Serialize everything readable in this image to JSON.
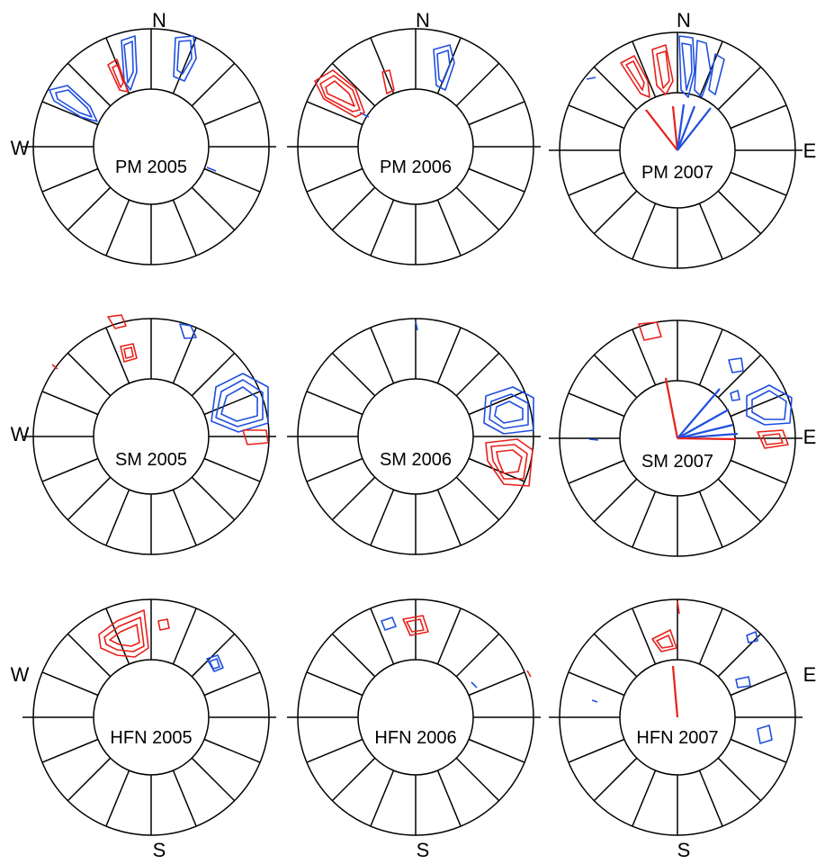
{
  "figure": {
    "compass": {
      "north": "N",
      "south": "S",
      "west": "W",
      "east": "E"
    },
    "panels": [
      {
        "label": "PM  2005"
      },
      {
        "label": "PM  2006"
      },
      {
        "label": "PM  2007"
      },
      {
        "label": "SM  2005"
      },
      {
        "label": "SM  2006"
      },
      {
        "label": "SM  2007"
      },
      {
        "label": "HFN  2005"
      },
      {
        "label": "HFN  2006"
      },
      {
        "label": "HFN  2007"
      }
    ]
  },
  "colors": {
    "blue": "#1f4fe0",
    "red": "#e8201a",
    "line": "#000000",
    "background": "#ffffff"
  }
}
